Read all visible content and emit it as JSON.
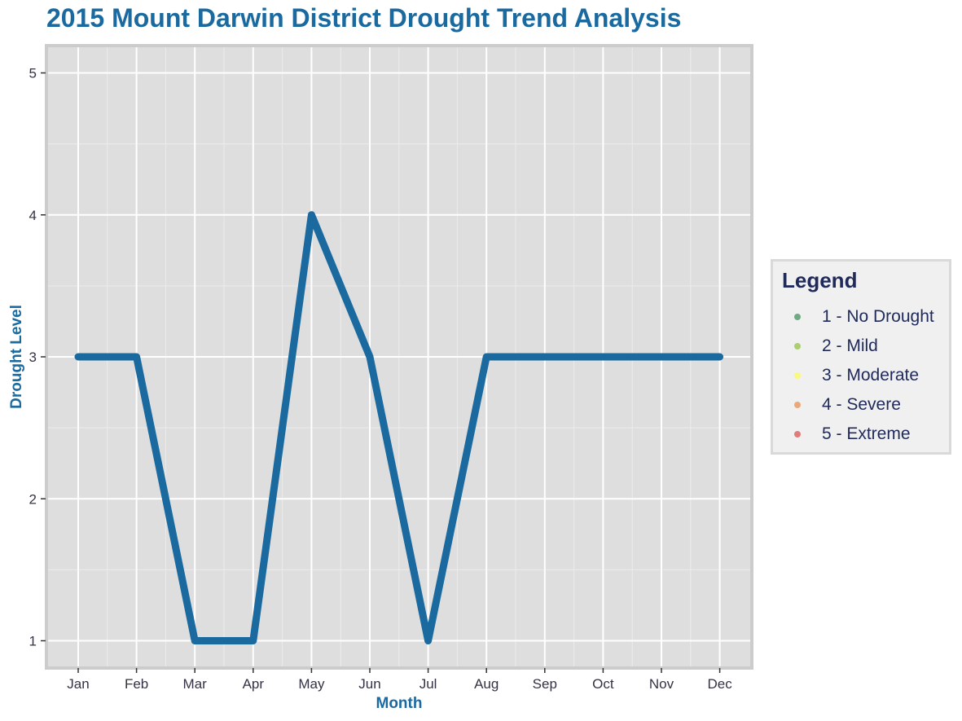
{
  "chart_data": {
    "type": "line",
    "title": "2015 Mount Darwin District Drought Trend Analysis",
    "xlabel": "Month",
    "ylabel": "Drought Level",
    "categories": [
      "Jan",
      "Feb",
      "Mar",
      "Apr",
      "May",
      "Jun",
      "Jul",
      "Aug",
      "Sep",
      "Oct",
      "Nov",
      "Dec"
    ],
    "values": [
      3,
      3,
      1,
      1,
      4,
      3,
      1,
      3,
      3,
      3,
      3,
      3
    ],
    "ylim": [
      1,
      5
    ],
    "yticks": [
      1,
      2,
      3,
      4,
      5
    ],
    "line_color": "#1a6aa0",
    "panel_background": "#dedede",
    "grid": true,
    "legend": {
      "title": "Legend",
      "position": "right",
      "items": [
        {
          "label": "1 - No Drought",
          "color": "#1a7a3c"
        },
        {
          "label": "2 - Mild",
          "color": "#7fb81c"
        },
        {
          "label": "3 - Moderate",
          "color": "#ffff33"
        },
        {
          "label": "4 - Severe",
          "color": "#e8762b"
        },
        {
          "label": "5 - Extreme",
          "color": "#d6302a"
        }
      ]
    }
  }
}
